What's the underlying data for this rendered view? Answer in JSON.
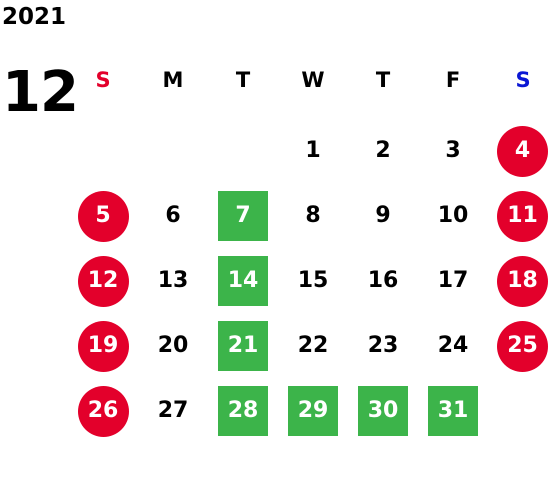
{
  "calendar": {
    "year": "2021",
    "month": "12",
    "weekdays": [
      {
        "label": "S",
        "color": "#e3002b"
      },
      {
        "label": "M",
        "color": "#000000"
      },
      {
        "label": "T",
        "color": "#000000"
      },
      {
        "label": "W",
        "color": "#000000"
      },
      {
        "label": "T",
        "color": "#000000"
      },
      {
        "label": "F",
        "color": "#000000"
      },
      {
        "label": "S",
        "color": "#0b17d4"
      }
    ],
    "weeks": [
      [
        null,
        null,
        null,
        {
          "label": "1",
          "style": "plain"
        },
        {
          "label": "2",
          "style": "plain"
        },
        {
          "label": "3",
          "style": "plain"
        },
        {
          "label": "4",
          "style": "holiday"
        }
      ],
      [
        {
          "label": "5",
          "style": "holiday"
        },
        {
          "label": "6",
          "style": "plain"
        },
        {
          "label": "7",
          "style": "marked"
        },
        {
          "label": "8",
          "style": "plain"
        },
        {
          "label": "9",
          "style": "plain"
        },
        {
          "label": "10",
          "style": "plain"
        },
        {
          "label": "11",
          "style": "holiday"
        }
      ],
      [
        {
          "label": "12",
          "style": "holiday"
        },
        {
          "label": "13",
          "style": "plain"
        },
        {
          "label": "14",
          "style": "marked"
        },
        {
          "label": "15",
          "style": "plain"
        },
        {
          "label": "16",
          "style": "plain"
        },
        {
          "label": "17",
          "style": "plain"
        },
        {
          "label": "18",
          "style": "holiday"
        }
      ],
      [
        {
          "label": "19",
          "style": "holiday"
        },
        {
          "label": "20",
          "style": "plain"
        },
        {
          "label": "21",
          "style": "marked"
        },
        {
          "label": "22",
          "style": "plain"
        },
        {
          "label": "23",
          "style": "plain"
        },
        {
          "label": "24",
          "style": "plain"
        },
        {
          "label": "25",
          "style": "holiday"
        }
      ],
      [
        {
          "label": "26",
          "style": "holiday"
        },
        {
          "label": "27",
          "style": "plain"
        },
        {
          "label": "28",
          "style": "marked"
        },
        {
          "label": "29",
          "style": "marked"
        },
        {
          "label": "30",
          "style": "marked"
        },
        {
          "label": "31",
          "style": "marked"
        },
        null
      ]
    ]
  },
  "colors": {
    "holiday": "#e3002b",
    "marked": "#3cb44a",
    "text": "#000000",
    "text_on_fill": "#ffffff"
  }
}
